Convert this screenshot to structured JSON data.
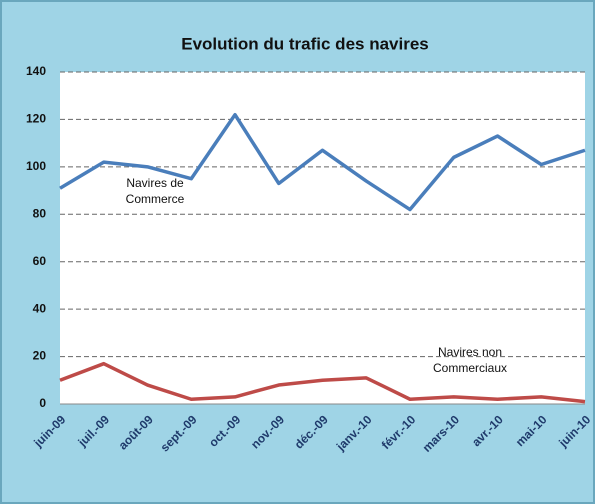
{
  "chart_data": {
    "type": "line",
    "title": "Evolution du trafic des navires",
    "categories": [
      "juin-09",
      "juil.-09",
      "août-09",
      "sept.-09",
      "oct.-09",
      "nov.-09",
      "déc.-09",
      "janv.-10",
      "févr.-10",
      "mars-10",
      "avr.-10",
      "mai-10",
      "juin-10"
    ],
    "series": [
      {
        "name": "Navires de Commerce",
        "color": "#4a7ebb",
        "values": [
          91,
          102,
          100,
          95,
          122,
          93,
          107,
          94,
          82,
          104,
          113,
          101,
          107
        ]
      },
      {
        "name": "Navires non Commerciaux",
        "color": "#be4b48",
        "values": [
          10,
          17,
          8,
          2,
          3,
          8,
          10,
          11,
          2,
          3,
          2,
          3,
          1
        ]
      }
    ],
    "ylim": [
      0,
      140
    ],
    "yticks": [
      0,
      20,
      40,
      60,
      80,
      100,
      120,
      140
    ],
    "grid": true
  }
}
